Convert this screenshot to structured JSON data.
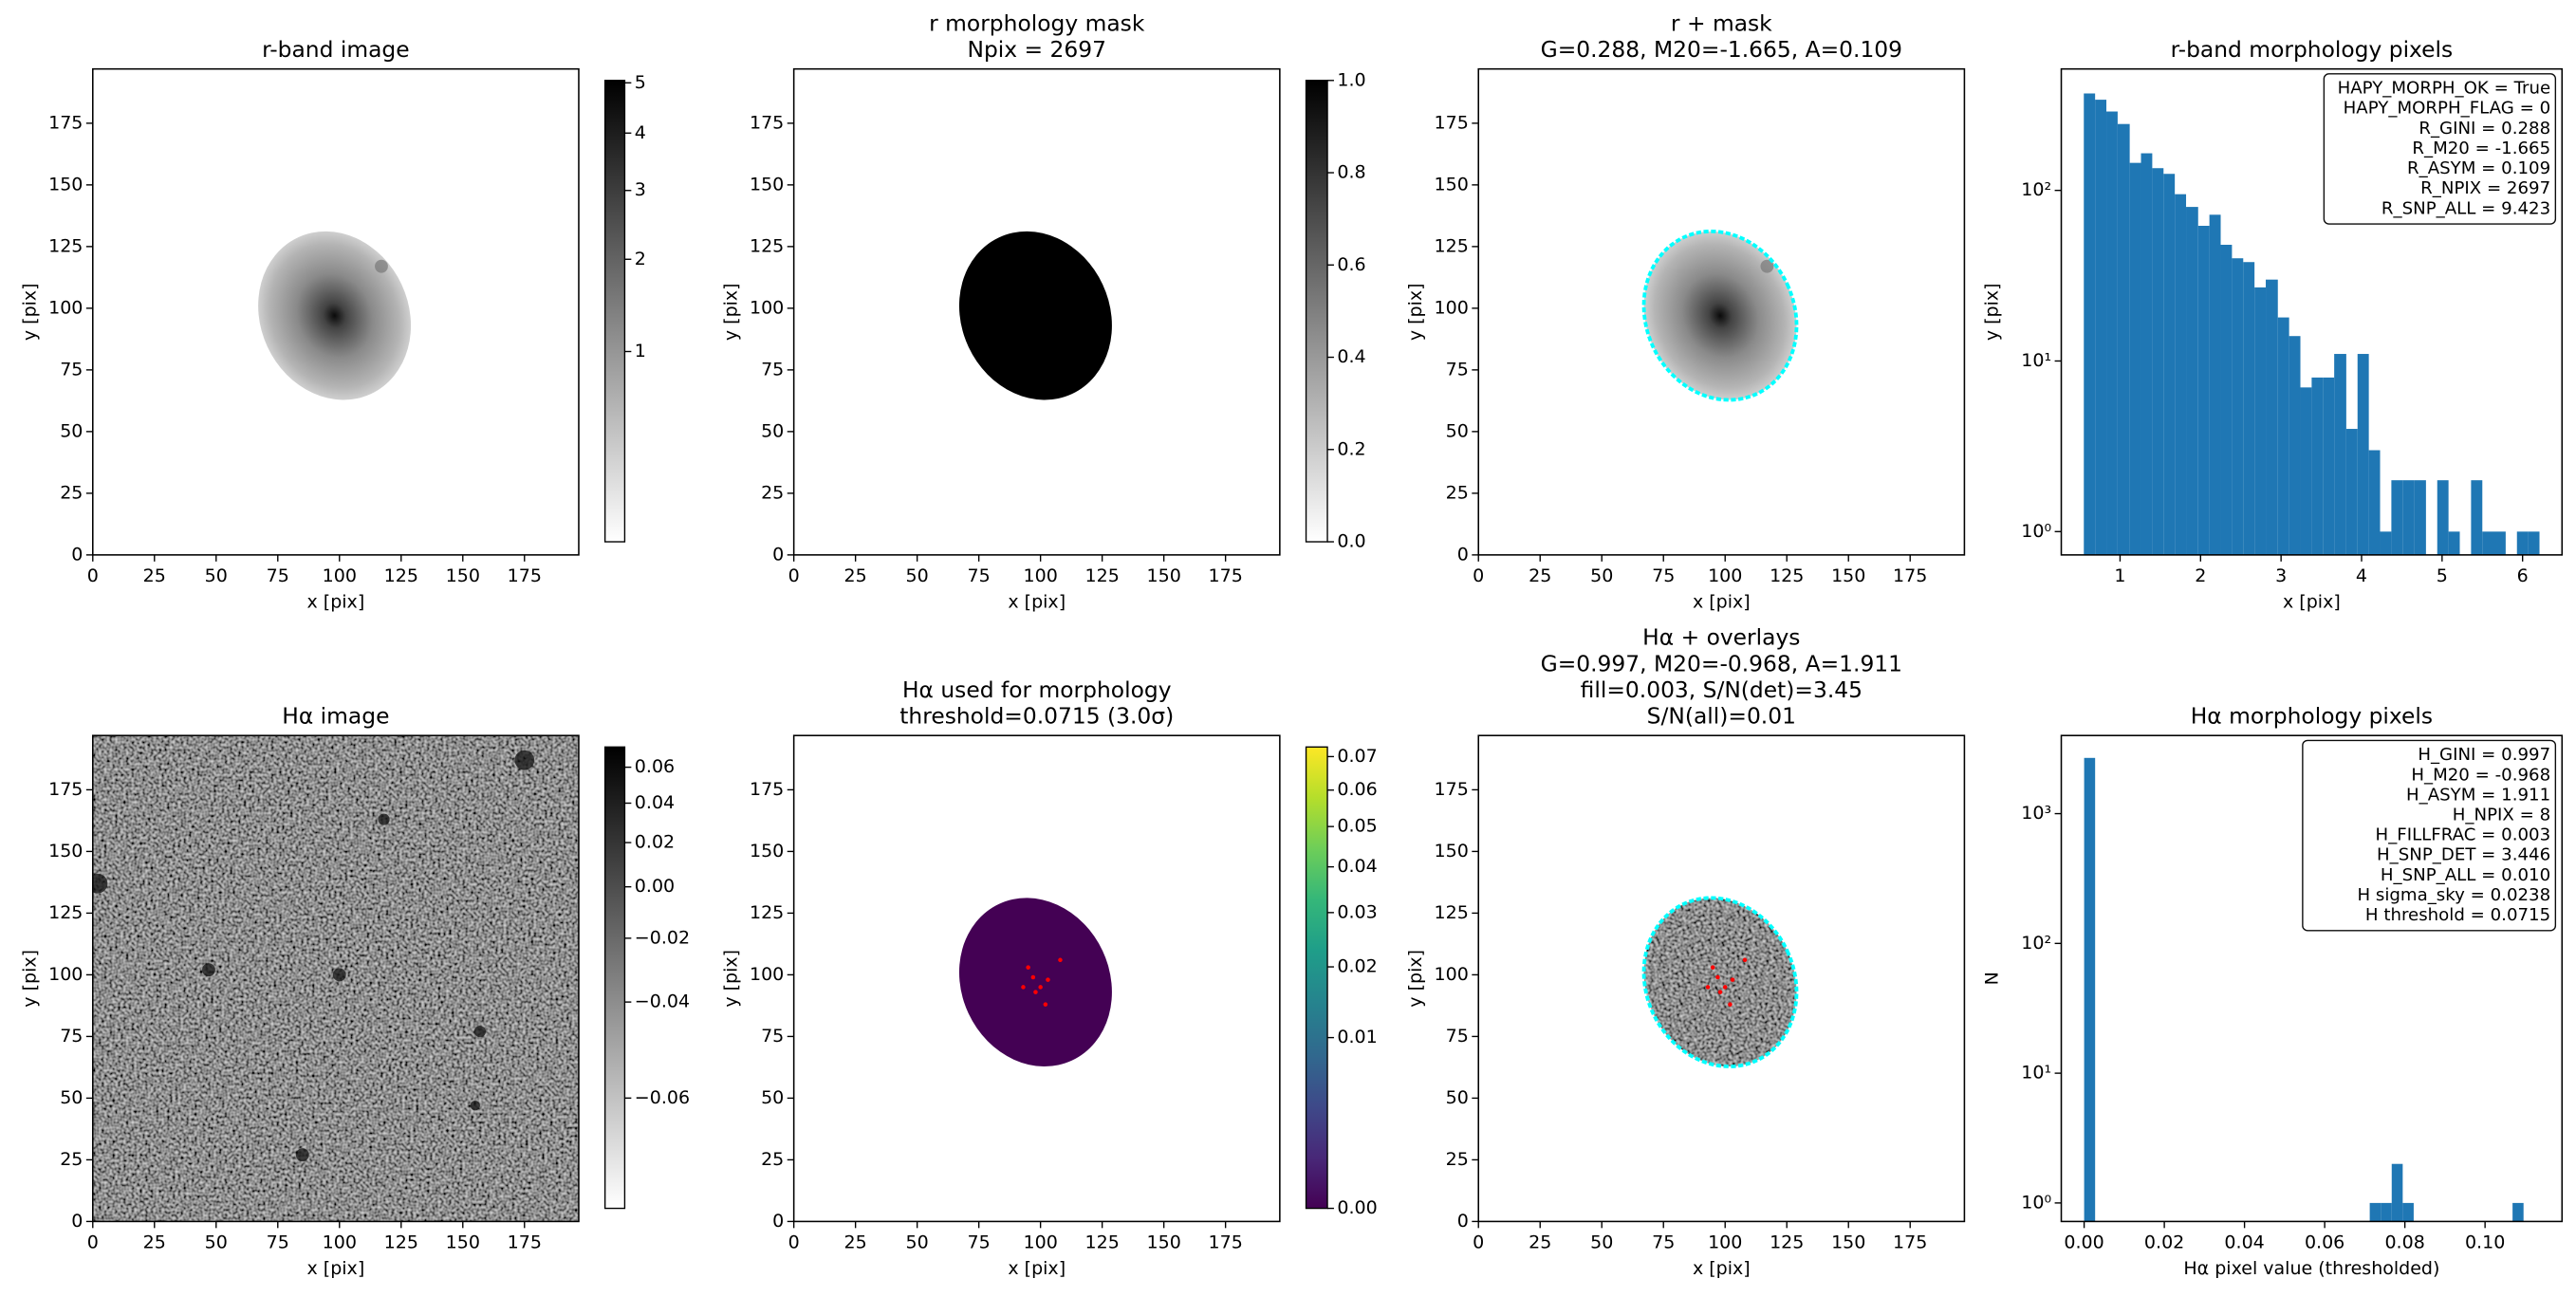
{
  "chart_data": [
    {
      "type": "image",
      "title": [
        "r-band image"
      ],
      "xlabel": "x [pix]",
      "ylabel": "y [pix]",
      "xlim": [
        0,
        197
      ],
      "ylim": [
        0,
        197
      ],
      "xticks": [
        0,
        25,
        50,
        75,
        100,
        125,
        150,
        175
      ],
      "yticks": [
        0,
        25,
        50,
        75,
        100,
        125,
        150,
        175
      ],
      "cmap": "gray_r",
      "colorbar": {
        "clim": [
          0.17,
          5.05
        ],
        "scale": "sqrt",
        "ticks": [
          1,
          2,
          3,
          4,
          5
        ]
      }
    },
    {
      "type": "image",
      "title": [
        "r morphology mask",
        "Npix = 2697"
      ],
      "xlabel": "x [pix]",
      "ylabel": "y [pix]",
      "xlim": [
        0,
        197
      ],
      "ylim": [
        0,
        197
      ],
      "xticks": [
        0,
        25,
        50,
        75,
        100,
        125,
        150,
        175
      ],
      "yticks": [
        0,
        25,
        50,
        75,
        100,
        125,
        150,
        175
      ],
      "cmap": "gray_r",
      "colorbar": {
        "clim": [
          0,
          1
        ],
        "scale": "linear",
        "ticks": [
          {
            "value": 0,
            "label": "0.0"
          },
          0.2,
          0.4,
          0.6,
          0.8,
          {
            "value": 1,
            "label": "1.0"
          }
        ]
      }
    },
    {
      "type": "image",
      "title": [
        "r + mask",
        "G=0.288, M20=-1.665, A=0.109"
      ],
      "xlabel": "x [pix]",
      "ylabel": "y [pix]",
      "xlim": [
        0,
        197
      ],
      "ylim": [
        0,
        197
      ],
      "xticks": [
        0,
        25,
        50,
        75,
        100,
        125,
        150,
        175
      ],
      "yticks": [
        0,
        25,
        50,
        75,
        100,
        125,
        150,
        175
      ],
      "cmap": "gray_r"
    },
    {
      "type": "histogram",
      "title": [
        "r-band morphology pixels"
      ],
      "xlabel": "x [pix]",
      "ylabel": "y [pix]",
      "color": "#1f77b4",
      "yscale": "log",
      "bins": [
        0.55,
        0.69,
        0.83,
        0.97,
        1.12,
        1.26,
        1.4,
        1.54,
        1.68,
        1.82,
        1.97,
        2.11,
        2.25,
        2.39,
        2.53,
        2.67,
        2.81,
        2.96,
        3.1,
        3.24,
        3.38,
        3.52,
        3.66,
        3.81,
        3.95,
        4.09,
        4.23,
        4.37,
        4.51,
        4.65,
        4.8,
        4.94,
        5.08,
        5.22,
        5.36,
        5.5,
        5.65,
        5.79,
        5.93,
        6.07,
        6.21
      ],
      "counts": [
        370,
        340,
        290,
        245,
        145,
        165,
        135,
        125,
        95,
        80,
        62,
        72,
        48,
        40,
        38,
        27,
        30,
        18,
        14,
        7,
        8,
        8,
        11,
        4,
        11,
        3,
        1,
        2,
        2,
        2,
        0,
        2,
        1,
        0,
        2,
        1,
        1,
        0,
        1,
        1
      ],
      "xlim": [
        0.27,
        6.49
      ],
      "ylim": [
        0.73,
        515
      ],
      "xticks": [
        1,
        2,
        3,
        4,
        5,
        6
      ],
      "yticks": [
        {
          "value": 1,
          "label": "10⁰"
        },
        {
          "value": 10,
          "label": "10¹"
        },
        {
          "value": 100,
          "label": "10²"
        }
      ],
      "annotation": [
        "HAPY_MORPH_OK = True",
        "HAPY_MORPH_FLAG = 0",
        "R_GINI = 0.288",
        "R_M20 = -1.665",
        "R_ASYM = 0.109",
        "R_NPIX = 2697",
        "R_SNP_ALL = 9.423"
      ],
      "annotation_corner": "upper right"
    },
    {
      "type": "image",
      "title": [
        "Hα image"
      ],
      "xlabel": "x [pix]",
      "ylabel": "y [pix]",
      "xlim": [
        0,
        197
      ],
      "ylim": [
        0,
        197
      ],
      "xticks": [
        0,
        25,
        50,
        75,
        100,
        125,
        150,
        175
      ],
      "yticks": [
        0,
        25,
        50,
        75,
        100,
        125,
        150,
        175
      ],
      "cmap": "gray_r",
      "colorbar": {
        "clim": [
          -0.068,
          0.072
        ],
        "scale": "sqrt",
        "ticks": [
          0.06,
          0.04,
          0.02,
          {
            "value": 0,
            "label": "0.00"
          },
          {
            "value": -0.02,
            "label": "−0.02"
          },
          {
            "value": -0.04,
            "label": "−0.04"
          },
          {
            "value": -0.06,
            "label": "−0.06"
          }
        ]
      }
    },
    {
      "type": "image",
      "title": [
        "Hα used for morphology",
        "threshold=0.0715 (3.0σ)"
      ],
      "xlabel": "x [pix]",
      "ylabel": "y [pix]",
      "xlim": [
        0,
        197
      ],
      "ylim": [
        0,
        197
      ],
      "xticks": [
        0,
        25,
        50,
        75,
        100,
        125,
        150,
        175
      ],
      "yticks": [
        0,
        25,
        50,
        75,
        100,
        125,
        150,
        175
      ],
      "cmap": "viridis",
      "colorbar": {
        "clim": [
          0,
          0.073
        ],
        "scale": "sqrt",
        "ticks": [
          {
            "value": 0,
            "label": "0.00"
          },
          0.01,
          0.02,
          0.03,
          0.04,
          0.05,
          0.06,
          0.07
        ]
      }
    },
    {
      "type": "image",
      "title": [
        "Hα + overlays",
        "G=0.997, M20=-0.968, A=1.911",
        "fill=0.003, S/N(det)=3.45",
        "S/N(all)=0.01"
      ],
      "xlabel": "x [pix]",
      "ylabel": "y [pix]",
      "xlim": [
        0,
        197
      ],
      "ylim": [
        0,
        197
      ],
      "xticks": [
        0,
        25,
        50,
        75,
        100,
        125,
        150,
        175
      ],
      "yticks": [
        0,
        25,
        50,
        75,
        100,
        125,
        150,
        175
      ],
      "cmap": "gray_r"
    },
    {
      "type": "histogram",
      "title": [
        "Hα morphology pixels"
      ],
      "xlabel": "Hα pixel value (thresholded)",
      "ylabel": "N",
      "color": "#1f77b4",
      "yscale": "log",
      "bins": [
        0,
        0.00274,
        0.00548,
        0.00822,
        0.01096,
        0.0137,
        0.01644,
        0.01918,
        0.02192,
        0.02466,
        0.0274,
        0.03014,
        0.03288,
        0.03562,
        0.03836,
        0.0411,
        0.04384,
        0.04658,
        0.04932,
        0.05206,
        0.0548,
        0.05754,
        0.06028,
        0.06302,
        0.06576,
        0.0685,
        0.07124,
        0.07398,
        0.07672,
        0.07946,
        0.0822,
        0.08494,
        0.08768,
        0.09042,
        0.09316,
        0.0959,
        0.09864,
        0.10138,
        0.10412,
        0.10686,
        0.1096
      ],
      "counts": [
        2689,
        0,
        0,
        0,
        0,
        0,
        0,
        0,
        0,
        0,
        0,
        0,
        0,
        0,
        0,
        0,
        0,
        0,
        0,
        0,
        0,
        0,
        0,
        0,
        0,
        0,
        1,
        1,
        2,
        1,
        0,
        0,
        0,
        0,
        0,
        0,
        0,
        0,
        0,
        1
      ],
      "xlim": [
        -0.0057,
        0.1192
      ],
      "ylim": [
        0.72,
        4000
      ],
      "xticks": [
        {
          "value": 0,
          "label": "0.00"
        },
        0.02,
        0.04,
        0.06,
        0.08,
        {
          "value": 0.1,
          "label": "0.10"
        }
      ],
      "yticks": [
        {
          "value": 1,
          "label": "10⁰"
        },
        {
          "value": 10,
          "label": "10¹"
        },
        {
          "value": 100,
          "label": "10²"
        },
        {
          "value": 1000,
          "label": "10³"
        }
      ],
      "annotation": [
        "H_GINI = 0.997",
        "H_M20 = -0.968",
        "H_ASYM = 1.911",
        "H_NPIX = 8",
        "H_FILLFRAC = 0.003",
        "H_SNP_DET = 3.446",
        "H_SNP_ALL = 0.010",
        "H sigma_sky = 0.0238",
        "H threshold = 0.0715"
      ],
      "annotation_corner": "upper right"
    }
  ]
}
